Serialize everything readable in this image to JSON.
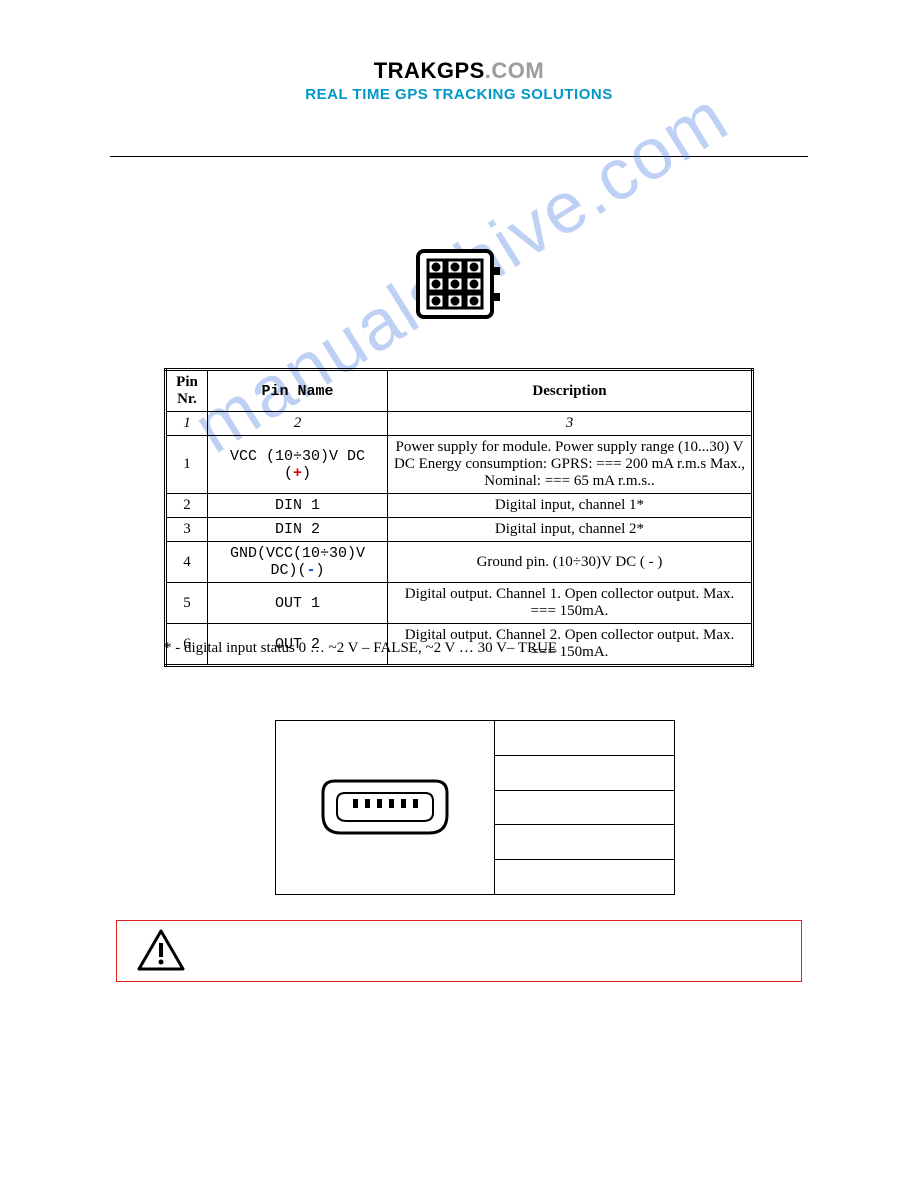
{
  "header": {
    "brand_a": "TRAKGPS",
    "brand_b": ".COM",
    "tagline": "REAL TIME GPS TRACKING SOLUTIONS"
  },
  "watermark": "manuals.hive.com",
  "pin_table": {
    "headers": [
      "Pin Nr.",
      "Pin Name",
      "Description"
    ],
    "index_row": [
      "1",
      "2",
      "3"
    ],
    "rows": [
      {
        "nr": "1",
        "name_pre": "VCC (10÷30)V DC (",
        "name_sym": "+",
        "name_sym_class": "red",
        "name_post": ")",
        "desc": "Power supply for module. Power supply range (10...30) V DC Energy consumption: GPRS: === 200 mA r.m.s Max., Nominal: === 65 mA r.m.s.."
      },
      {
        "nr": "2",
        "name_pre": "DIN 1",
        "name_sym": "",
        "name_sym_class": "",
        "name_post": "",
        "desc": "Digital input, channel 1*"
      },
      {
        "nr": "3",
        "name_pre": "DIN 2",
        "name_sym": "",
        "name_sym_class": "",
        "name_post": "",
        "desc": "Digital input, channel 2*"
      },
      {
        "nr": "4",
        "name_pre": "GND(VCC(10÷30)V DC)(",
        "name_sym": "-",
        "name_sym_class": "blue",
        "name_post": ")",
        "desc": "Ground pin. (10÷30)V DC ( - )"
      },
      {
        "nr": "5",
        "name_pre": "OUT 1",
        "name_sym": "",
        "name_sym_class": "",
        "name_post": "",
        "desc": "Digital output. Channel 1. Open collector output. Max. === 150mA."
      },
      {
        "nr": "6",
        "name_pre": "OUT 2",
        "name_sym": "",
        "name_sym_class": "",
        "name_post": "",
        "desc": "Digital output. Channel 2. Open collector output. Max. === 150mA."
      }
    ]
  },
  "footnote": "* - digital input status 0 … ~2 V – FALSE, ~2 V … 30 V– TRUE",
  "colors": {
    "accent": "#0097c9",
    "warn_border": "#e02020",
    "red": "#d00000",
    "blue": "#0047d0",
    "watermark": "rgba(70,120,220,0.35)"
  }
}
